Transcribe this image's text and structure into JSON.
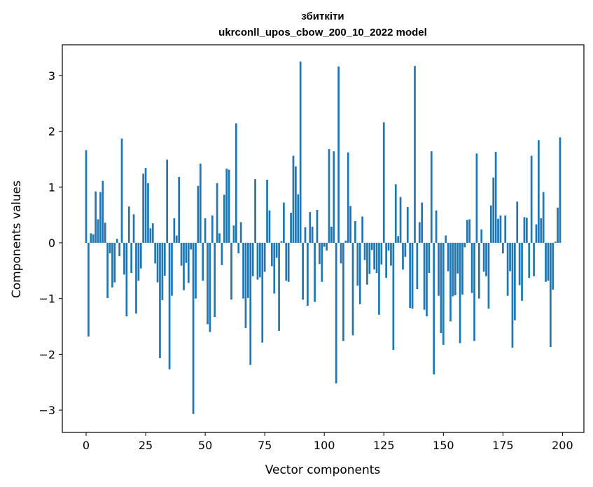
{
  "chart_data": {
    "type": "bar",
    "title_line1": "збиткіти",
    "title_line2": "ukrconll_upos_cbow_200_10_2022 model",
    "xlabel": "Vector components",
    "ylabel": "Components values",
    "xlim": [
      -10,
      209
    ],
    "ylim": [
      -3.4,
      3.55
    ],
    "xticks": [
      0,
      25,
      50,
      75,
      100,
      125,
      150,
      175,
      200
    ],
    "yticks": [
      -3,
      -2,
      -1,
      0,
      1,
      2,
      3
    ],
    "ytick_labels": [
      "−3",
      "−2",
      "−1",
      "0",
      "1",
      "2",
      "3"
    ],
    "bar_color": "#1f77b4",
    "grid": false,
    "values": [
      1.66,
      -1.68,
      0.17,
      0.15,
      0.92,
      0.42,
      0.91,
      1.11,
      0.36,
      -0.99,
      -0.19,
      -0.8,
      -0.71,
      0.07,
      -0.24,
      1.87,
      -0.57,
      -1.32,
      0.65,
      -0.54,
      0.51,
      -1.27,
      -0.68,
      -0.46,
      1.24,
      1.34,
      1.07,
      0.26,
      0.35,
      -0.37,
      -0.71,
      -2.07,
      -1.03,
      -0.59,
      1.49,
      -2.27,
      -0.95,
      0.44,
      0.13,
      1.18,
      -0.41,
      -0.85,
      -0.36,
      -0.72,
      -0.12,
      -3.07,
      -1.0,
      1.02,
      1.42,
      -0.68,
      0.44,
      -1.46,
      -1.6,
      0.49,
      -1.33,
      1.07,
      0.17,
      -0.4,
      0.86,
      1.33,
      1.31,
      -1.02,
      0.31,
      2.14,
      -0.19,
      0.37,
      -1.0,
      -1.53,
      -0.99,
      -2.19,
      -0.6,
      1.14,
      -0.66,
      -0.62,
      -1.79,
      -0.52,
      1.13,
      0.58,
      -0.42,
      -0.91,
      -0.27,
      -1.58,
      0.03,
      0.72,
      -0.68,
      -0.7,
      0.54,
      1.56,
      1.37,
      0.87,
      3.25,
      -1.02,
      0.28,
      -1.13,
      0.55,
      0.29,
      -1.06,
      0.59,
      -0.38,
      -0.7,
      -0.07,
      -0.14,
      1.68,
      0.29,
      1.64,
      -2.52,
      3.16,
      -0.37,
      -1.76,
      0.04,
      1.62,
      0.66,
      -1.66,
      0.39,
      -0.77,
      -1.1,
      0.47,
      -0.31,
      -0.75,
      -0.56,
      -0.13,
      -0.48,
      -0.54,
      -1.29,
      -0.39,
      2.16,
      -0.63,
      -0.14,
      -0.41,
      -1.92,
      1.05,
      0.12,
      0.82,
      -0.48,
      -0.25,
      0.64,
      -1.17,
      -1.18,
      3.17,
      -0.83,
      0.37,
      0.72,
      -1.2,
      -1.32,
      -0.54,
      1.64,
      -2.36,
      0.58,
      -0.95,
      -1.62,
      -1.83,
      0.13,
      -0.51,
      -1.41,
      -0.96,
      -0.94,
      -0.55,
      -1.8,
      -0.93,
      -0.08,
      0.41,
      0.42,
      -0.9,
      -1.76,
      1.6,
      -1.0,
      0.24,
      -0.52,
      -0.6,
      -1.18,
      0.67,
      1.17,
      1.63,
      0.43,
      0.49,
      -0.19,
      0.49,
      -0.95,
      -0.51,
      -1.88,
      -1.39,
      0.74,
      -0.76,
      -1.04,
      0.46,
      0.45,
      -0.63,
      1.56,
      -0.6,
      0.33,
      1.84,
      0.44,
      0.91,
      -0.7,
      -0.68,
      -1.87,
      -0.84,
      0.02,
      0.63,
      1.89
    ]
  }
}
